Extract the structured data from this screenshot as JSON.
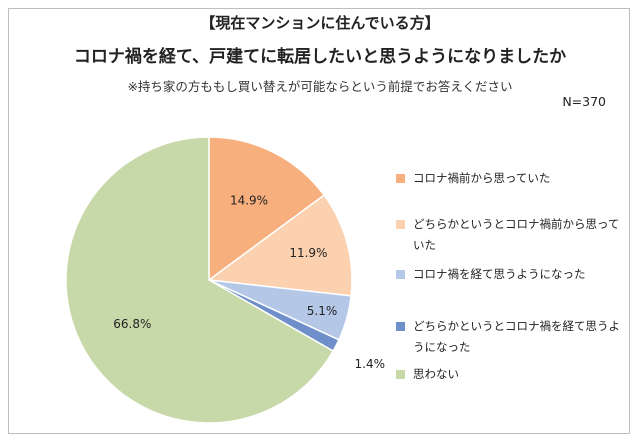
{
  "title_bracket": "【現在マンションに住んでいる方】",
  "title_main": "コロナ禍を経て、戸建てに転居したいと思うようになりましたか",
  "note": "※持ち家の方ももし買い替えが可能ならという前提でお答えください",
  "n_label": "N=370",
  "chart_data": {
    "type": "pie",
    "labels": [
      "コロナ禍前から思っていた",
      "どちらかというとコロナ禍前から思っていた",
      "コロナ禍を経て思うようになった",
      "どちらかというとコロナ禍を経て思うようになった",
      "思わない"
    ],
    "values": [
      14.9,
      11.9,
      5.1,
      1.4,
      66.8
    ],
    "value_labels": [
      "14.9%",
      "11.9%",
      "5.1%",
      "1.4%",
      "66.8%"
    ],
    "colors": [
      "#f7b07d",
      "#fbd1b0",
      "#b4c7e7",
      "#6e8fc9",
      "#c8d9a9"
    ],
    "legend_position": "right",
    "start": "12 o'clock, clockwise"
  }
}
